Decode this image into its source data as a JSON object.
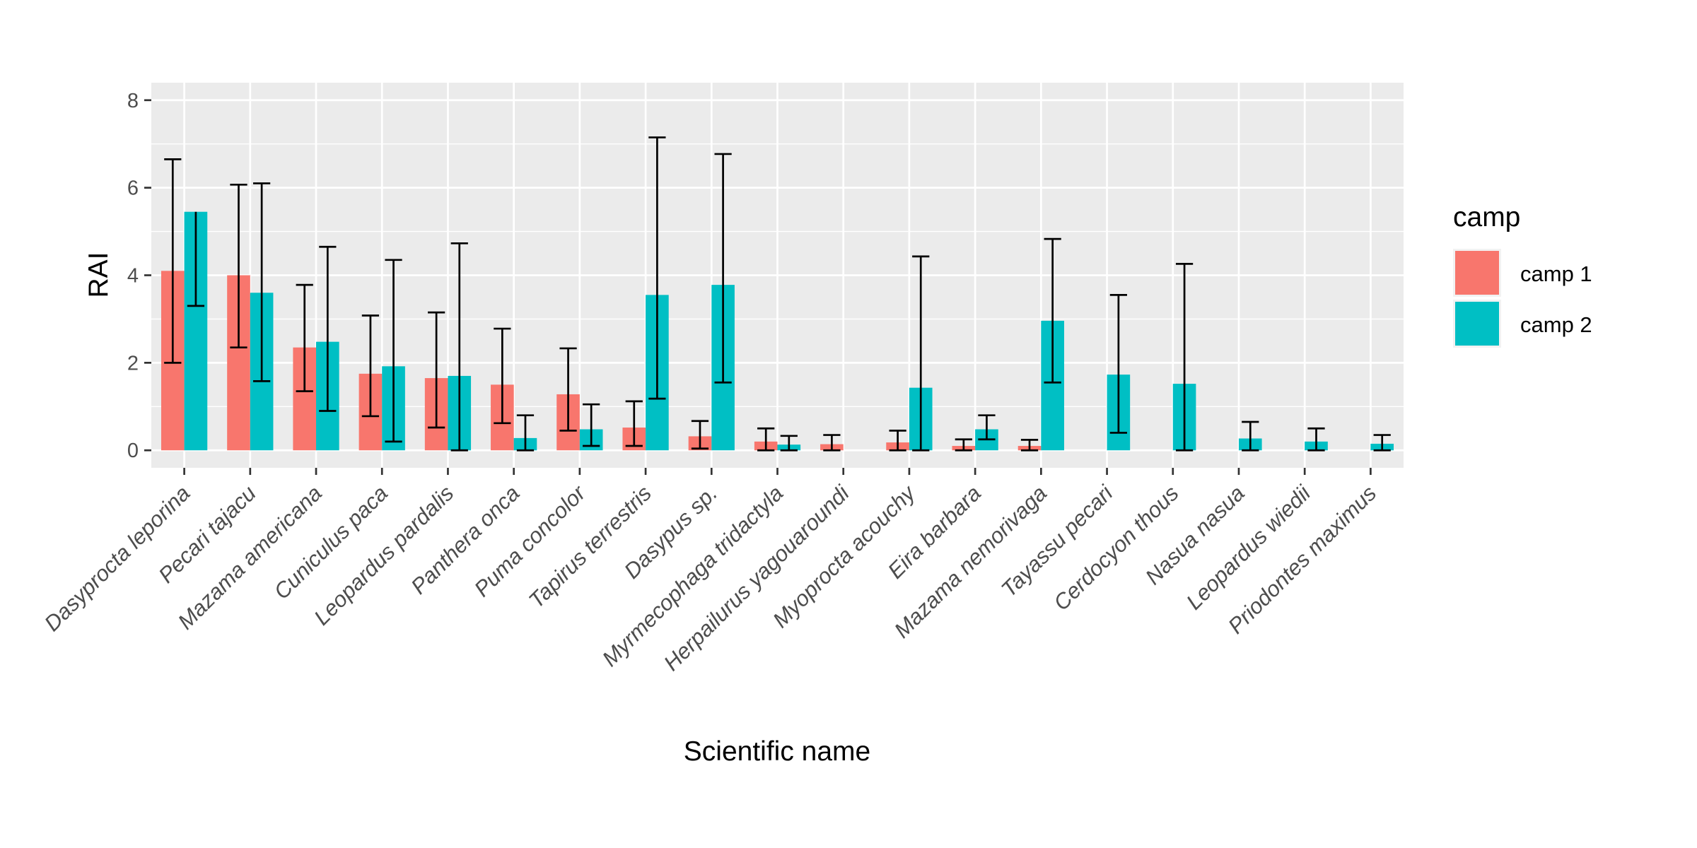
{
  "chart_data": {
    "type": "bar",
    "title": "",
    "xlabel": "Scientific name",
    "ylabel": "RAI",
    "ylim": [
      -0.4,
      8.4
    ],
    "yticks": [
      0,
      2,
      4,
      6,
      8
    ],
    "grid": true,
    "legend": {
      "title": "camp",
      "position": "right"
    },
    "categories": [
      "Dasyprocta leporina",
      "Pecari tajacu",
      "Mazama americana",
      "Cuniculus paca",
      "Leopardus pardalis",
      "Panthera onca",
      "Puma concolor",
      "Tapirus terrestris",
      "Dasypus sp.",
      "Myrmecophaga tridactyla",
      "Herpailurus yagouaroundi",
      "Myoprocta acouchy",
      "Eira barbara",
      "Mazama nemorivaga",
      "Tayassu pecari",
      "Cerdocyon thous",
      "Nasua nasua",
      "Leopardus wiedii",
      "Priodontes maximus"
    ],
    "series": [
      {
        "name": "camp 1",
        "color": "#F8766D",
        "values": [
          4.1,
          4.0,
          2.35,
          1.75,
          1.65,
          1.5,
          1.28,
          0.52,
          0.32,
          0.2,
          0.14,
          0.18,
          0.1,
          0.1,
          null,
          null,
          null,
          null,
          null
        ],
        "error_low": [
          2.0,
          2.35,
          1.35,
          0.78,
          0.52,
          0.62,
          0.45,
          0.1,
          0.04,
          0.0,
          0.0,
          0.0,
          0.0,
          0.0,
          null,
          null,
          null,
          null,
          null
        ],
        "error_high": [
          6.65,
          6.07,
          3.78,
          3.08,
          3.15,
          2.78,
          2.33,
          1.12,
          0.67,
          0.5,
          0.35,
          0.45,
          0.25,
          0.24,
          null,
          null,
          null,
          null,
          null
        ]
      },
      {
        "name": "camp 2",
        "color": "#00BFC4",
        "values": [
          5.45,
          3.6,
          2.48,
          1.92,
          1.7,
          0.28,
          0.48,
          3.55,
          3.78,
          0.13,
          null,
          1.43,
          0.48,
          2.96,
          1.73,
          1.52,
          0.27,
          0.2,
          0.15
        ],
        "error_low": [
          3.3,
          1.58,
          0.9,
          0.2,
          0.0,
          0.0,
          0.1,
          1.18,
          1.55,
          0.0,
          null,
          0.0,
          0.25,
          1.55,
          0.4,
          0.0,
          0.0,
          0.0,
          0.0
        ],
        "error_high": [
          null,
          6.1,
          4.65,
          4.35,
          4.73,
          0.8,
          1.05,
          7.15,
          6.77,
          0.33,
          null,
          4.43,
          0.8,
          4.83,
          3.55,
          4.26,
          0.65,
          0.5,
          0.35
        ]
      }
    ]
  }
}
